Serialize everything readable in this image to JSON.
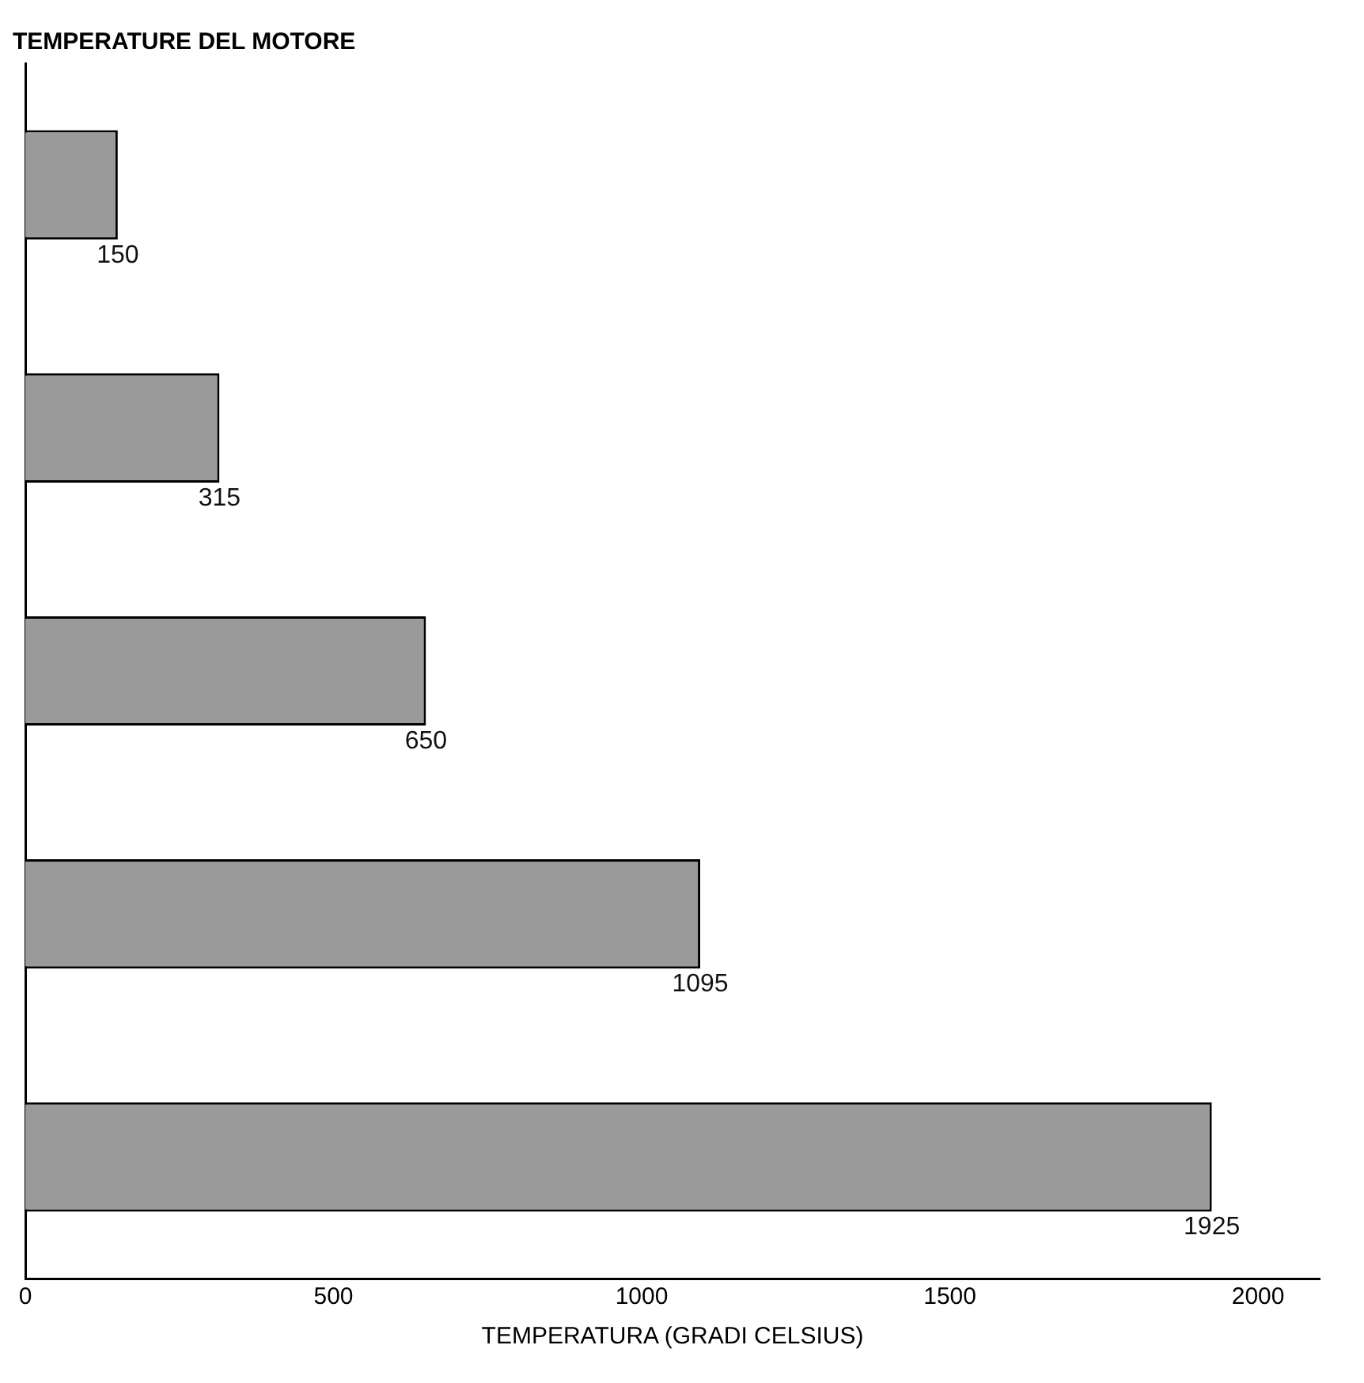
{
  "chart_data": {
    "type": "bar",
    "orientation": "horizontal",
    "title": "TEMPERATURE DEL MOTORE",
    "xlabel": "TEMPERATURA (GRADI CELSIUS)",
    "categories": [
      null,
      null,
      null,
      null,
      null
    ],
    "values": [
      150,
      315,
      650,
      1095,
      1925
    ],
    "color": "#9a9a9a",
    "xlim": [
      0,
      2100
    ],
    "xticks": [
      0,
      500,
      1000,
      1500,
      2000
    ],
    "data_labels": true,
    "grid": false,
    "legend": false
  }
}
